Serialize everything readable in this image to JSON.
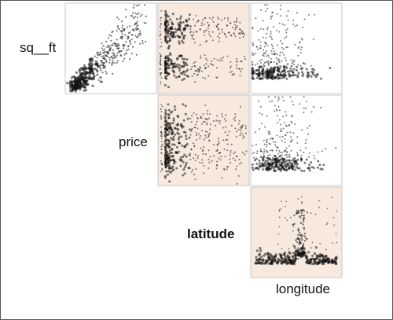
{
  "chart_data": {
    "type": "scatter",
    "title": "",
    "variables": [
      "sq__ft",
      "price",
      "latitude",
      "longitude"
    ],
    "highlight_color": "#f8e9df",
    "point_color": "#111111",
    "grid": false,
    "tick_labels": "none",
    "panels": [
      {
        "row": "sq__ft",
        "col": "price",
        "highlighted": false,
        "shape": "positive linear trend, dense cluster at low values, fanning out upward to the right"
      },
      {
        "row": "sq__ft",
        "col": "latitude",
        "highlighted": true,
        "shape": "two dense bands on the left, upper and lower, thinning to the right"
      },
      {
        "row": "sq__ft",
        "col": "longitude",
        "highlighted": false,
        "shape": "dense cluster at bottom-left with sparse points spread upward"
      },
      {
        "row": "price",
        "col": "latitude",
        "highlighted": true,
        "shape": "two dense bands on the left side, scattered points to the right"
      },
      {
        "row": "price",
        "col": "longitude",
        "highlighted": false,
        "shape": "dense cluster at bottom-left, sparse upward spread"
      },
      {
        "row": "latitude",
        "col": "longitude",
        "highlighted": true,
        "shape": "dense band along the bottom, a vertical streak rising in the middle-right"
      }
    ]
  }
}
